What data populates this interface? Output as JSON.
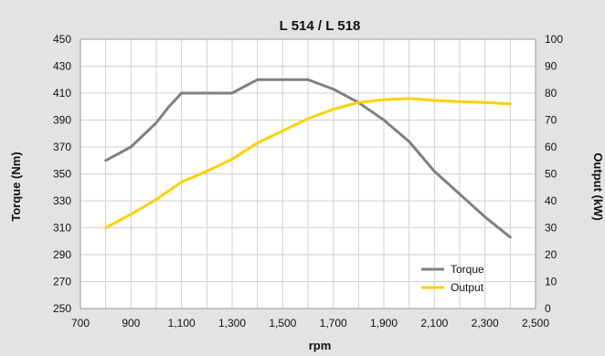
{
  "chart_data": {
    "type": "line",
    "title": "L 514 / L 518",
    "xlabel": "rpm",
    "ylabel_left": "Torque (Nm)",
    "ylabel_right": "Output (kW)",
    "xlim": [
      700,
      2500
    ],
    "x_ticks": [
      700,
      900,
      1100,
      1300,
      1500,
      1700,
      1900,
      2100,
      2300,
      2500
    ],
    "x_tick_labels": [
      "700",
      "900",
      "1,100",
      "1,300",
      "1,500",
      "1,700",
      "1,900",
      "2,100",
      "2,300",
      "2,500"
    ],
    "ylim_left": [
      250,
      450
    ],
    "y_ticks_left": [
      250,
      270,
      290,
      310,
      330,
      350,
      370,
      390,
      410,
      430,
      450
    ],
    "ylim_right": [
      0,
      100
    ],
    "y_ticks_right": [
      0,
      10,
      20,
      30,
      40,
      50,
      60,
      70,
      80,
      90,
      100
    ],
    "grid": true,
    "legend_position": "bottom-right",
    "background_color": "#e3e3e3",
    "plot_background_color": "#ffffff",
    "series": [
      {
        "name": "Torque",
        "axis": "left",
        "color": "#808080",
        "x": [
          800,
          900,
          1000,
          1050,
          1100,
          1200,
          1300,
          1350,
          1400,
          1450,
          1500,
          1600,
          1700,
          1800,
          1900,
          2000,
          2100,
          2200,
          2300,
          2400
        ],
        "y": [
          360,
          370,
          388,
          400,
          410,
          410,
          410,
          415,
          420,
          420,
          420,
          420,
          413,
          403,
          390,
          374,
          352,
          335,
          318,
          303
        ]
      },
      {
        "name": "Output",
        "axis": "right",
        "color": "#ffd100",
        "x": [
          800,
          900,
          1000,
          1100,
          1200,
          1300,
          1400,
          1500,
          1600,
          1700,
          1800,
          1900,
          2000,
          2100,
          2200,
          2300,
          2400
        ],
        "y": [
          30,
          35,
          40.5,
          47,
          51,
          55.5,
          61.5,
          66,
          70.5,
          74,
          76.5,
          77.6,
          78,
          77.3,
          76.8,
          76.5,
          76
        ]
      }
    ]
  }
}
